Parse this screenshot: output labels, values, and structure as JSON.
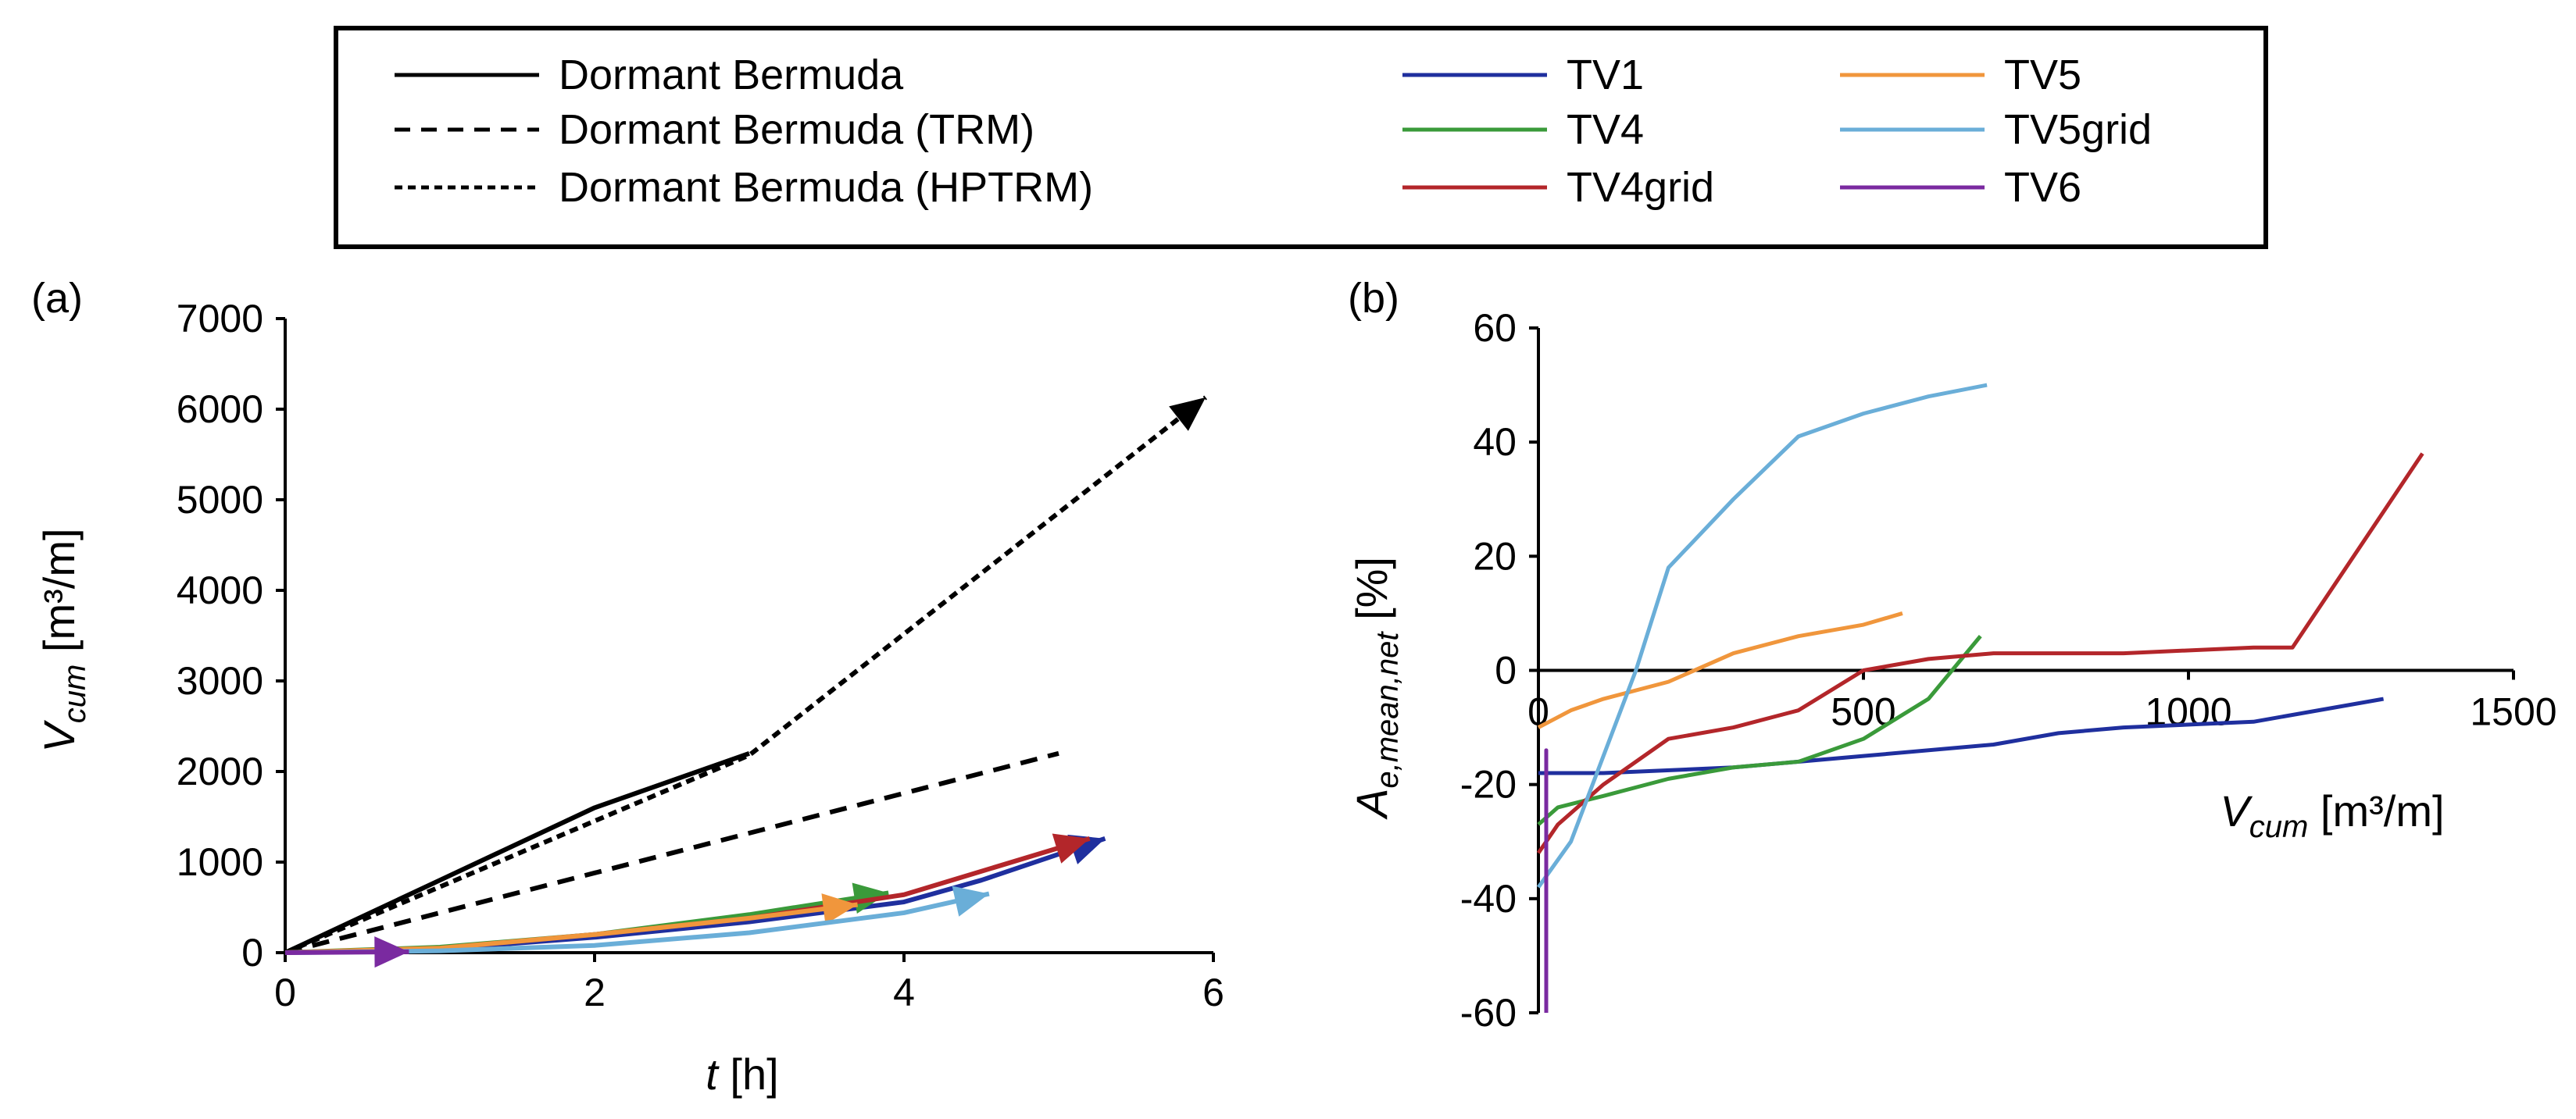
{
  "legend": [
    {
      "label": "Dormant Bermuda",
      "color": "#000000",
      "dash": "solid"
    },
    {
      "label": "Dormant Bermuda (TRM)",
      "color": "#000000",
      "dash": "dashed"
    },
    {
      "label": "Dormant Bermuda (HPTRM)",
      "color": "#000000",
      "dash": "dotted"
    },
    {
      "label": "TV1",
      "color": "#1f2f9e",
      "dash": "solid"
    },
    {
      "label": "TV4",
      "color": "#3a9a3a",
      "dash": "solid"
    },
    {
      "label": "TV4grid",
      "color": "#b3262a",
      "dash": "solid"
    },
    {
      "label": "TV5",
      "color": "#f0963c",
      "dash": "solid"
    },
    {
      "label": "TV5grid",
      "color": "#6aaed8",
      "dash": "solid"
    },
    {
      "label": "TV6",
      "color": "#7a2aa0",
      "dash": "solid"
    }
  ],
  "chart_data": [
    {
      "panel": "(a)",
      "type": "line",
      "xlabel_main": "t",
      "xlabel_unit": " [h]",
      "ylabel_main": "V",
      "ylabel_sub": "cum",
      "ylabel_unit": " [m³/m]",
      "xlim": [
        0,
        6
      ],
      "ylim": [
        0,
        7000
      ],
      "xticks": [
        "0",
        "2",
        "4",
        "6"
      ],
      "yticks": [
        "0",
        "1000",
        "2000",
        "3000",
        "4000",
        "5000",
        "6000",
        "7000"
      ],
      "series": [
        {
          "name": "Dormant Bermuda",
          "color": "#000000",
          "dash": "solid",
          "arrow": false,
          "x": [
            0,
            1,
            2,
            3
          ],
          "y": [
            0,
            800,
            1600,
            2200
          ]
        },
        {
          "name": "Dormant Bermuda (TRM)",
          "color": "#000000",
          "dash": "dashed",
          "arrow": false,
          "x": [
            0,
            5
          ],
          "y": [
            0,
            2200
          ]
        },
        {
          "name": "Dormant Bermuda (HPTRM)",
          "color": "#000000",
          "dash": "dotted",
          "arrow": true,
          "x": [
            0,
            3,
            5.95
          ],
          "y": [
            0,
            2180,
            6130
          ]
        },
        {
          "name": "TV1",
          "color": "#1f2f9e",
          "dash": "solid",
          "arrow": true,
          "x": [
            0,
            1,
            2,
            3,
            4,
            4.5,
            5.3
          ],
          "y": [
            0,
            40,
            170,
            340,
            560,
            800,
            1260
          ]
        },
        {
          "name": "TV4",
          "color": "#3a9a3a",
          "dash": "solid",
          "arrow": true,
          "x": [
            0,
            1,
            2,
            3,
            3.9
          ],
          "y": [
            0,
            60,
            200,
            420,
            660
          ]
        },
        {
          "name": "TV4grid",
          "color": "#b3262a",
          "dash": "solid",
          "arrow": true,
          "x": [
            0,
            1,
            2,
            3,
            4,
            5.2
          ],
          "y": [
            0,
            50,
            200,
            380,
            640,
            1260
          ]
        },
        {
          "name": "TV5",
          "color": "#f0963c",
          "dash": "solid",
          "arrow": true,
          "x": [
            0,
            1,
            2,
            3,
            3.7
          ],
          "y": [
            0,
            50,
            200,
            380,
            530
          ]
        },
        {
          "name": "TV5grid",
          "color": "#6aaed8",
          "dash": "solid",
          "arrow": true,
          "x": [
            0,
            1,
            2,
            3,
            4,
            4.55
          ],
          "y": [
            0,
            20,
            80,
            220,
            440,
            650
          ]
        },
        {
          "name": "TV6",
          "color": "#7a2aa0",
          "dash": "solid",
          "arrow": true,
          "x": [
            0,
            0.8
          ],
          "y": [
            0,
            10
          ]
        }
      ]
    },
    {
      "panel": "(b)",
      "type": "line",
      "xlabel_main": "V",
      "xlabel_sub": "cum",
      "xlabel_unit": " [m³/m]",
      "ylabel_main": "A",
      "ylabel_sub": "e,mean,net",
      "ylabel_unit": " [%]",
      "xlim": [
        0,
        1500
      ],
      "ylim": [
        -60,
        60
      ],
      "xticks": [
        "0",
        "500",
        "1000",
        "1500"
      ],
      "yticks": [
        "-60",
        "-40",
        "-20",
        "0",
        "20",
        "40",
        "60"
      ],
      "series": [
        {
          "name": "TV1",
          "color": "#1f2f9e",
          "x": [
            0,
            100,
            300,
            500,
            700,
            800,
            900,
            1100,
            1300
          ],
          "y": [
            -18,
            -18,
            -17,
            -15,
            -13,
            -11,
            -10,
            -9,
            -5
          ]
        },
        {
          "name": "TV4",
          "color": "#3a9a3a",
          "x": [
            0,
            30,
            100,
            200,
            300,
            400,
            500,
            600,
            680
          ],
          "y": [
            -27,
            -24,
            -22,
            -19,
            -17,
            -16,
            -12,
            -5,
            6
          ]
        },
        {
          "name": "TV4grid",
          "color": "#b3262a",
          "x": [
            0,
            30,
            100,
            200,
            300,
            400,
            500,
            600,
            700,
            900,
            1100,
            1160,
            1360
          ],
          "y": [
            -32,
            -27,
            -20,
            -12,
            -10,
            -7,
            0,
            2,
            3,
            3,
            4,
            4,
            38
          ]
        },
        {
          "name": "TV5",
          "color": "#f0963c",
          "x": [
            0,
            50,
            100,
            200,
            300,
            400,
            500,
            560
          ],
          "y": [
            -10,
            -7,
            -5,
            -2,
            3,
            6,
            8,
            10
          ]
        },
        {
          "name": "TV5grid",
          "color": "#6aaed8",
          "x": [
            0,
            50,
            100,
            150,
            200,
            300,
            400,
            500,
            600,
            690
          ],
          "y": [
            -38,
            -30,
            -15,
            0,
            18,
            30,
            41,
            45,
            48,
            50
          ]
        },
        {
          "name": "TV6",
          "color": "#7a2aa0",
          "x": [
            0,
            0,
            0
          ],
          "y": [
            -60,
            -14,
            -23
          ]
        }
      ]
    }
  ]
}
